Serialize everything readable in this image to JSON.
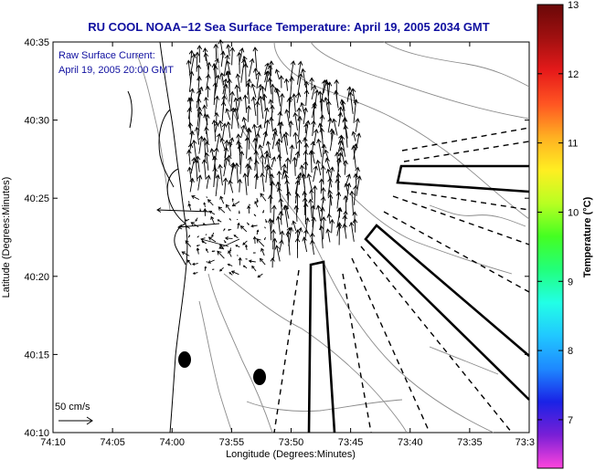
{
  "chart_data": {
    "type": "vector-field",
    "title": "RU COOL  NOAA−12  Sea Surface Temperature:  April 19, 2005 2034 GMT",
    "annotation": [
      "Raw Surface Current:",
      "April 19, 2005 20:00 GMT"
    ],
    "xlabel": "Longitude (Degrees:Minutes)",
    "ylabel": "Latitude (Degrees:Minutes)",
    "xlim_minutes_west": [
      10,
      30
    ],
    "ylim_minutes_north": [
      10,
      35
    ],
    "x_tick_labels": [
      "74:10",
      "74:05",
      "74:00",
      "73:55",
      "73:50",
      "73:45",
      "73:40",
      "73:35",
      "73:3"
    ],
    "y_tick_labels": [
      "40:10",
      "40:15",
      "40:20",
      "40:25",
      "40:30",
      "40:35"
    ],
    "scale_label": "50 cm/s",
    "colorbar": {
      "label": "Temperature (°C)",
      "min": 6.3,
      "max": 13,
      "tick_labels": [
        "7",
        "8",
        "9",
        "10",
        "11",
        "12",
        "13"
      ],
      "colors": [
        "#ff44dd",
        "#7a1fd6",
        "#1a22e6",
        "#1e88ff",
        "#21c8ff",
        "#22ffe6",
        "#22ff7a",
        "#44ff22",
        "#b8ff22",
        "#ffee22",
        "#ffb022",
        "#ff5522",
        "#e61a1a",
        "#a01010",
        "#6a0808"
      ]
    }
  }
}
